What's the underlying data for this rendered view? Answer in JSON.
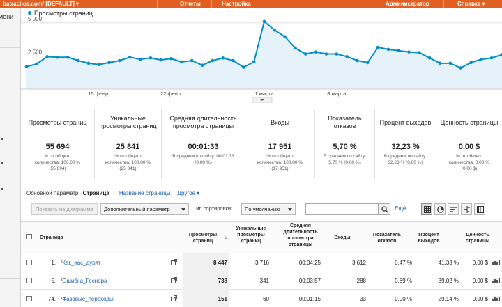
{
  "topbar": {
    "account": "batrachos.com/ [DEFAULT]",
    "nav": [
      "Отчеты",
      "Настройка",
      "Администратор",
      "Справка"
    ]
  },
  "sidebar": {
    "fragment": "мени"
  },
  "chart": {
    "legend": "Просмотры страниц",
    "series_color": "#058dc7",
    "fill_color": "#e6f2f9"
  },
  "chart_data": {
    "type": "area",
    "title": "Просмотры страниц",
    "series": [
      {
        "name": "Просмотры страниц",
        "values": [
          1700,
          1900,
          2450,
          2400,
          2400,
          2150,
          1950,
          1850,
          2000,
          2150,
          2400,
          2250,
          2350,
          2200,
          2300,
          2050,
          2150,
          1800,
          2150,
          2350,
          2150,
          1650,
          2050,
          5100,
          4450,
          3950,
          3100,
          2650,
          2800,
          2650,
          2650,
          2450,
          2150,
          2000,
          3150,
          3000,
          2900,
          2800,
          2750,
          2350,
          1950,
          1950,
          1600,
          2000,
          2250,
          2350,
          2600
        ]
      }
    ],
    "x_tick_labels": [
      "15 февр.",
      "22 февр.",
      "1 марта",
      "8 марта"
    ],
    "x_tick_index": [
      7,
      14,
      23,
      30
    ],
    "y_tick_labels": [
      "2 500",
      "5 000"
    ],
    "y_ticks": [
      2500,
      5000
    ],
    "ylim": [
      0,
      5250
    ],
    "grid": true,
    "legend": "top-left"
  },
  "tiles": [
    {
      "name": "Просмотры страниц",
      "value": "55 694",
      "sub1": "% от общего",
      "sub2": "количества: 100,00 %",
      "sub3": "(55 694)"
    },
    {
      "name": "Уникальные просмотры страниц",
      "value": "25 841",
      "sub1": "% от общего",
      "sub2": "количества: 100,00 %",
      "sub3": "(25 841)"
    },
    {
      "name": "Средняя длительность просмотра страницы",
      "value": "00:01:33",
      "sub1": "В среднем по сайту: 00:01:33",
      "sub2": "(0,00 %)",
      "sub3": ""
    },
    {
      "name": "Входы",
      "value": "17 951",
      "sub1": "% от общего",
      "sub2": "количества: 100,00 %",
      "sub3": "(17 951)"
    },
    {
      "name": "Показатель отказов",
      "value": "5,70 %",
      "sub1": "В среднем по сайту:",
      "sub2": "5,70 % (0,00 %)",
      "sub3": ""
    },
    {
      "name": "Процент выходов",
      "value": "32,23 %",
      "sub1": "В среднем по сайту:",
      "sub2": "32,23 % (0,00 %)",
      "sub3": ""
    },
    {
      "name": "Ценность страницы",
      "value": "0,00 $",
      "sub1": "% от общего",
      "sub2": "количества: 0,00 %",
      "sub3": "(0,00 $)"
    }
  ],
  "dimension": {
    "label": "Основной параметр:",
    "active": "Страница",
    "link": "Название страницы",
    "other": "Другое ▾"
  },
  "toolbar": {
    "show_on_chart": "Показать на диаграмме",
    "secondary": "Дополнительный параметр",
    "sort_label": "Тип сортировки:",
    "sort_value": "По умолчанию",
    "search_value": "",
    "more": "Ещё..."
  },
  "table": {
    "headers": [
      "Страница",
      "Просмотры страниц",
      "Уникальные просмотры страниц",
      "Средняя длительность просмотра страницы",
      "Входы",
      "Показатель отказов",
      "Процент выходов",
      "Ценность страницы"
    ],
    "sort_arrow": "↓",
    "rows": [
      {
        "idx": "1.",
        "page": "/Как_нас_дурят",
        "views": "8 447",
        "unique": "3 716",
        "avg": "00:04:25",
        "entries": "3 612",
        "bounce": "0,47 %",
        "exit": "41,33 %",
        "value": "0,00 $"
      },
      {
        "idx": "5.",
        "page": "/Ошибка_Геснера",
        "views": "738",
        "unique": "341",
        "avg": "00:03:57",
        "entries": "288",
        "bounce": "0,69 %",
        "exit": "39,02 %",
        "value": "0,00 $"
      },
      {
        "idx": "74.",
        "page": "/Фазовые_переходы",
        "views": "151",
        "unique": "60",
        "avg": "00:01:15",
        "entries": "33",
        "bounce": "0,00 %",
        "exit": "29,14 %",
        "value": "0,00 $"
      }
    ]
  }
}
